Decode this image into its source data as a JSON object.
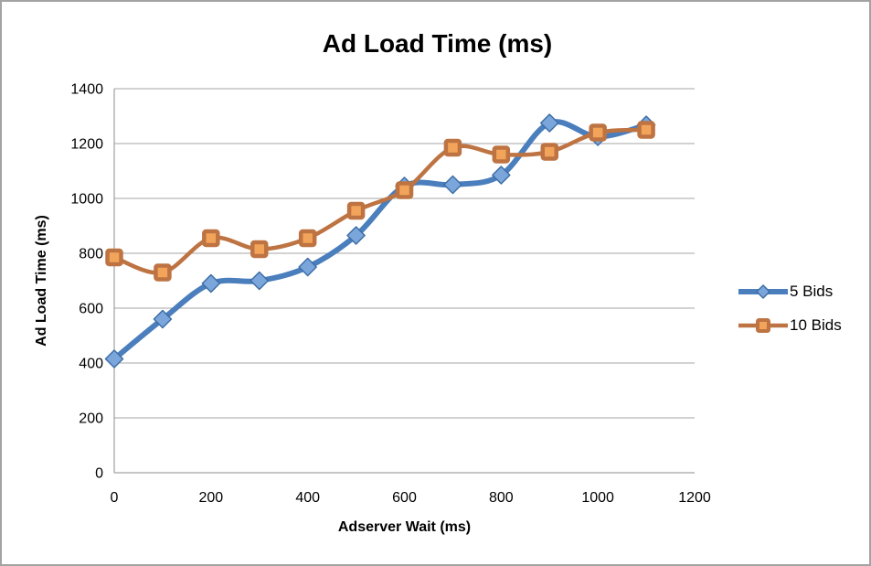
{
  "chart_data": {
    "type": "line",
    "title": "Ad Load Time (ms)",
    "xlabel": "Adserver Wait (ms)",
    "ylabel": "Ad Load Time (ms)",
    "x": [
      0,
      100,
      200,
      300,
      400,
      500,
      600,
      700,
      800,
      900,
      1000,
      1100
    ],
    "series": [
      {
        "name": "5 Bids",
        "marker": "diamond",
        "line_color": "#4A7EBD",
        "marker_fill": "#7BA6DC",
        "marker_stroke": "#3D6EA5",
        "line_width": 6,
        "values": [
          415,
          560,
          690,
          700,
          750,
          865,
          1045,
          1050,
          1085,
          1275,
          1225,
          1268
        ]
      },
      {
        "name": "10 Bids",
        "marker": "square",
        "line_color": "#BE7342",
        "marker_fill": "#F3A45B",
        "marker_stroke": "#BE7342",
        "line_width": 4.5,
        "values": [
          785,
          730,
          855,
          815,
          855,
          955,
          1030,
          1185,
          1160,
          1170,
          1240,
          1250
        ]
      }
    ],
    "xlim": [
      0,
      1200
    ],
    "ylim": [
      0,
      1400
    ],
    "xticks": [
      0,
      200,
      400,
      600,
      800,
      1000,
      1200
    ],
    "yticks": [
      0,
      200,
      400,
      600,
      800,
      1000,
      1200,
      1400
    ],
    "grid": "horizontal",
    "legend_position": "right",
    "gridline_color": "#A6A6A6",
    "axis_color": "#8C8C8C",
    "background_color": "#FFFFFF",
    "border_color": "#A3A3A3"
  }
}
